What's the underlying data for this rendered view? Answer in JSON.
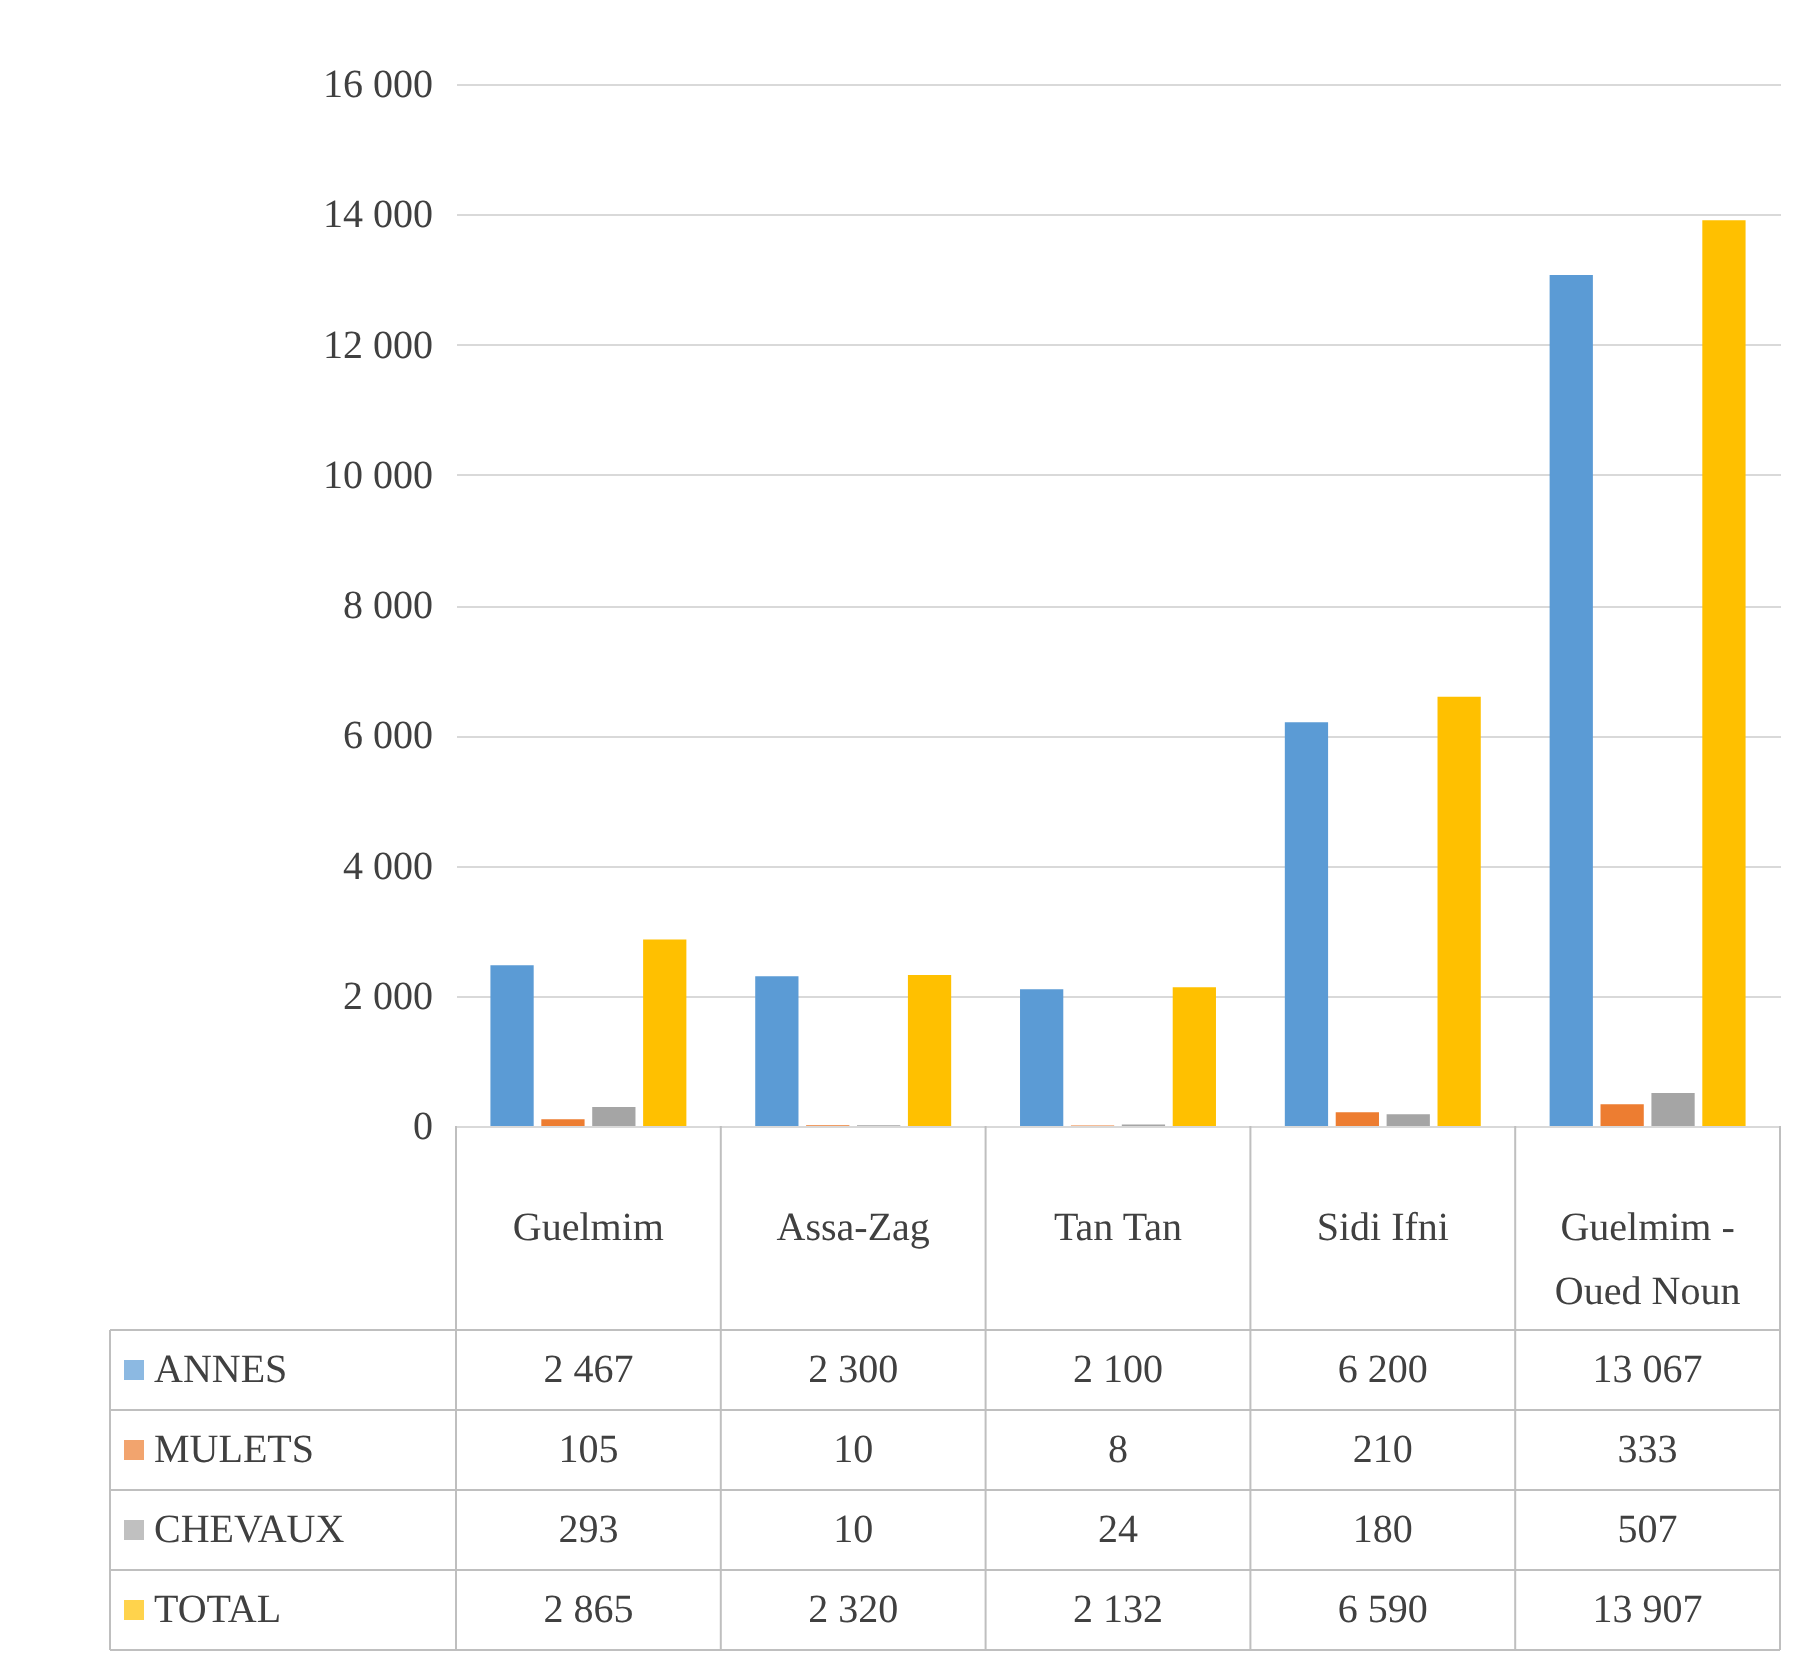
{
  "chart_data": {
    "type": "bar",
    "categories": [
      "Guelmim",
      "Assa-Zag",
      "Tan Tan",
      "Sidi Ifni",
      "Guelmim - Oued Noun"
    ],
    "series": [
      {
        "name": "ANNES",
        "color": "#5b9bd5",
        "values": [
          2467,
          2300,
          2100,
          6200,
          13067
        ],
        "value_labels": [
          "2 467",
          "2 300",
          "2 100",
          "6 200",
          "13 067"
        ]
      },
      {
        "name": "MULETS",
        "color": "#ed7d31",
        "values": [
          105,
          10,
          8,
          210,
          333
        ],
        "value_labels": [
          "105",
          "10",
          "8",
          "210",
          "333"
        ]
      },
      {
        "name": "CHEVAUX",
        "color": "#a5a5a5",
        "values": [
          293,
          10,
          24,
          180,
          507
        ],
        "value_labels": [
          "293",
          "10",
          "24",
          "180",
          "507"
        ]
      },
      {
        "name": "TOTAL",
        "color": "#ffc000",
        "values": [
          2865,
          2320,
          2132,
          6590,
          13907
        ],
        "value_labels": [
          "2 865",
          "2 320",
          "2 132",
          "6 590",
          "13 907"
        ]
      }
    ],
    "ylim": [
      0,
      16000
    ],
    "yticks": [
      0,
      {
        "value": 2000,
        "label": "2 000"
      },
      {
        "value": 4000,
        "label": "4 000"
      },
      {
        "value": 6000,
        "label": "6 000"
      },
      {
        "value": 8000,
        "label": "8 000"
      },
      {
        "value": 10000,
        "label": "10 000"
      },
      {
        "value": 12000,
        "label": "12 000"
      },
      {
        "value": 14000,
        "label": "14 000"
      },
      {
        "value": 16000,
        "label": "16 000"
      }
    ],
    "grid": "y",
    "legend": "bottom"
  }
}
